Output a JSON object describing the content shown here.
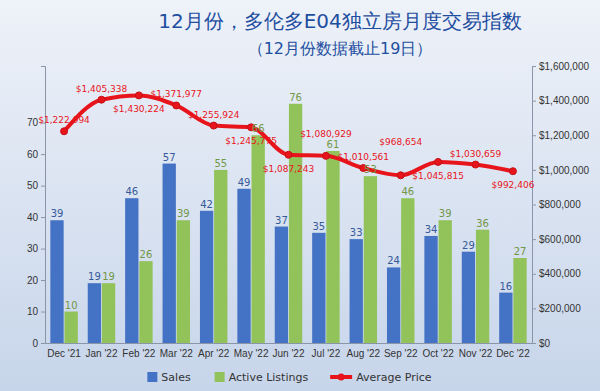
{
  "chart_data": {
    "type": "bar",
    "title": "12月份，多伦多E04独立房月度交易指数",
    "subtitle": "（12月份数据截止19日）",
    "categories": [
      "Dec '21",
      "Jan '22",
      "Feb '22",
      "Mar '22",
      "Apr '22",
      "May '22",
      "Jun '22",
      "Jul '22",
      "Aug '22",
      "Sep '22",
      "Oct '22",
      "Nov '22",
      "Dec '22"
    ],
    "series": [
      {
        "name": "Sales",
        "color": "#4472c4",
        "values": [
          39,
          19,
          46,
          57,
          42,
          49,
          37,
          35,
          33,
          24,
          34,
          29,
          16
        ]
      },
      {
        "name": "Active Listings",
        "color": "#92c25a",
        "values": [
          10,
          19,
          26,
          39,
          55,
          66,
          76,
          61,
          53,
          46,
          39,
          36,
          27
        ]
      },
      {
        "name": "Average Price",
        "type": "line",
        "axis": "y2",
        "color": "#e8141b",
        "marker": "circle",
        "values": [
          1222994,
          1405338,
          1430224,
          1371977,
          1255924,
          1245775,
          1087243,
          1080929,
          1010561,
          968654,
          1045815,
          1030659,
          992406
        ],
        "value_labels": [
          "$1,222,994",
          "$1,405,338",
          "$1,430,224",
          "$1,371,977",
          "$1,255,924",
          "$1,245,775",
          "$1,087,243",
          "$1,080,929",
          "$1,010,561",
          "$968,654",
          "$1,045,815",
          "$1,030,659",
          "$992,406"
        ]
      }
    ],
    "ylim": [
      0,
      88
    ],
    "yticks": [
      0,
      10,
      20,
      30,
      40,
      50,
      60,
      70
    ],
    "y2lim": [
      0,
      1600000
    ],
    "y2ticks": [
      {
        "value": 0,
        "label": "$0"
      },
      {
        "value": 200000,
        "label": "$200,000"
      },
      {
        "value": 400000,
        "label": "$400,000"
      },
      {
        "value": 600000,
        "label": "$600,000"
      },
      {
        "value": 800000,
        "label": "$800,000"
      },
      {
        "value": 1000000,
        "label": "$1,000,000"
      },
      {
        "value": 1200000,
        "label": "$1,200,000"
      },
      {
        "value": 1400000,
        "label": "$1,400,000"
      },
      {
        "value": 1600000,
        "label": "$1,600,000"
      }
    ],
    "grid": false,
    "data_labels": true,
    "legend": "bottom"
  }
}
